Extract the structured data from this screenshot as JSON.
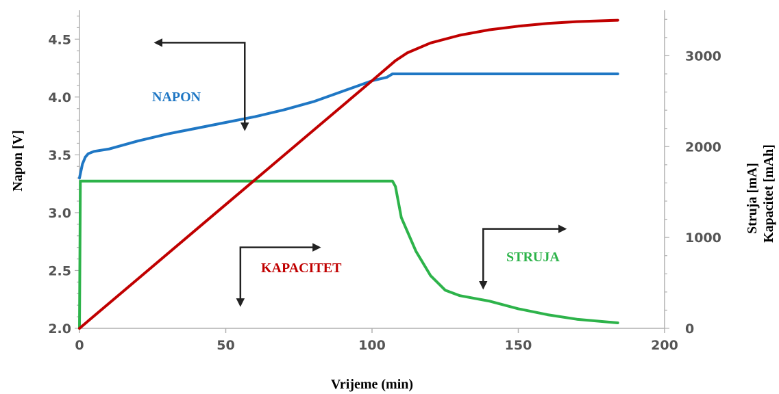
{
  "chart_data": {
    "type": "line",
    "xlabel": "Vrijeme (min)",
    "ylabel_left": "Napon [V]",
    "ylabel_right_1": "Struja [mA]",
    "ylabel_right_2": "Kapacitet [mAh]",
    "xlim": [
      0,
      200
    ],
    "ylim_left": [
      2.0,
      4.75
    ],
    "ylim_right": [
      0,
      3500
    ],
    "x_ticks": [
      "0",
      "50",
      "100",
      "150",
      "200"
    ],
    "y_ticks_left": [
      "2.0",
      "2.5",
      "3.0",
      "3.5",
      "4.0",
      "4.5"
    ],
    "y_ticks_right": [
      "0",
      "1000",
      "2000",
      "3000"
    ],
    "grid": false,
    "series": [
      {
        "name": "NAPON",
        "axis": "left",
        "color": "#1f77c4",
        "x": [
          0,
          1,
          2,
          3,
          5,
          10,
          20,
          30,
          40,
          50,
          60,
          70,
          80,
          90,
          100,
          105,
          107,
          110,
          120,
          150,
          184
        ],
        "y": [
          3.3,
          3.42,
          3.48,
          3.51,
          3.53,
          3.55,
          3.62,
          3.68,
          3.73,
          3.78,
          3.83,
          3.89,
          3.96,
          4.05,
          4.14,
          4.17,
          4.2,
          4.2,
          4.2,
          4.2,
          4.2
        ]
      },
      {
        "name": "KAPACITET",
        "axis": "right",
        "color": "#c00000",
        "x": [
          0,
          20,
          40,
          60,
          80,
          100,
          108,
          112,
          120,
          130,
          140,
          150,
          160,
          170,
          184
        ],
        "y": [
          0,
          545,
          1090,
          1635,
          2180,
          2725,
          2945,
          3030,
          3140,
          3225,
          3285,
          3325,
          3355,
          3375,
          3390
        ]
      },
      {
        "name": "STRUJA",
        "axis": "right",
        "color": "#2db34a",
        "x": [
          0,
          0.3,
          5,
          50,
          100,
          107,
          108,
          110,
          115,
          120,
          125,
          130,
          135,
          140,
          150,
          160,
          170,
          184
        ],
        "y": [
          0,
          1620,
          1620,
          1620,
          1620,
          1620,
          1560,
          1220,
          850,
          580,
          420,
          360,
          330,
          300,
          215,
          150,
          100,
          60
        ]
      }
    ],
    "annotations": {
      "napon": "NAPON",
      "kapacitet": "KAPACITET",
      "struja": "STRUJA"
    }
  }
}
